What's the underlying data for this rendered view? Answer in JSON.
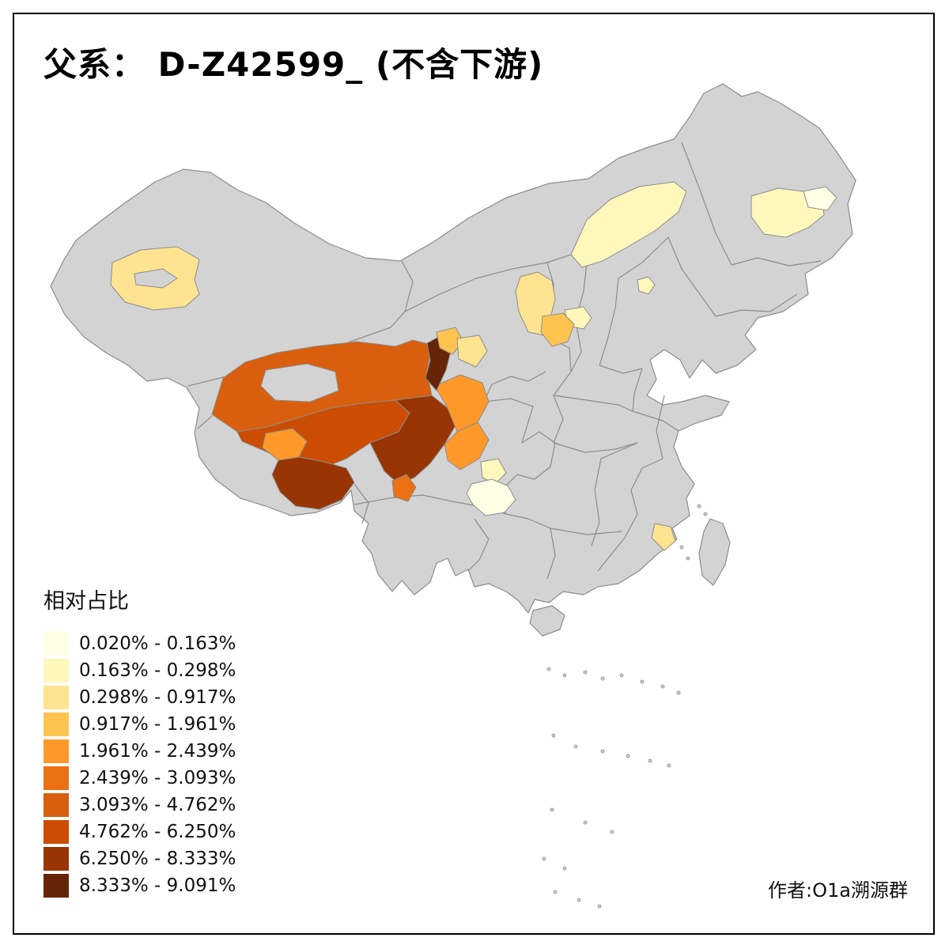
{
  "title": "父系： D-Z42599_ (不含下游)",
  "attribution": "作者:O1a溯源群",
  "legend": {
    "title": "相对占比",
    "bins": [
      {
        "label": "0.020% - 0.163%",
        "color": "#FFFFE5"
      },
      {
        "label": "0.163% - 0.298%",
        "color": "#FFF7BC"
      },
      {
        "label": "0.298% - 0.917%",
        "color": "#FEE391"
      },
      {
        "label": "0.917% - 1.961%",
        "color": "#FEC44F"
      },
      {
        "label": "1.961% - 2.439%",
        "color": "#FE9929"
      },
      {
        "label": "2.439% - 3.093%",
        "color": "#EC7014"
      },
      {
        "label": "3.093% - 4.762%",
        "color": "#D95F0E"
      },
      {
        "label": "4.762% - 6.250%",
        "color": "#CC4C02"
      },
      {
        "label": "6.250% - 8.333%",
        "color": "#993404"
      },
      {
        "label": "8.333% - 9.091%",
        "color": "#662506"
      }
    ]
  },
  "map": {
    "base_fill": "#D3D3D3",
    "border_color": "#8C8C8C",
    "background": "#FFFFFF",
    "region_bins": {
      "xinjiang-west": 2,
      "inner-mongolia-central": 1,
      "heilongjiang-west": 1,
      "heilongjiang-north": 0,
      "beijing-area": 1,
      "ningxia-north": 2,
      "gansu-pingliang": 1,
      "ningxia-south": 3,
      "qinghai-haixi": 6,
      "qinghai-yushu": 7,
      "qinghai-haidong": 9,
      "qinghai-north-small": 3,
      "gansu-lanzhou": 2,
      "sichuan-garze": 8,
      "sichuan-aba": 4,
      "sichuan-yaan": 4,
      "tibet-central": 4,
      "tibet-lhasa": 8,
      "yunnan-diqing": 5,
      "guizhou-north": 1,
      "guizhou-central": 0,
      "fujian-coast": 2
    }
  }
}
